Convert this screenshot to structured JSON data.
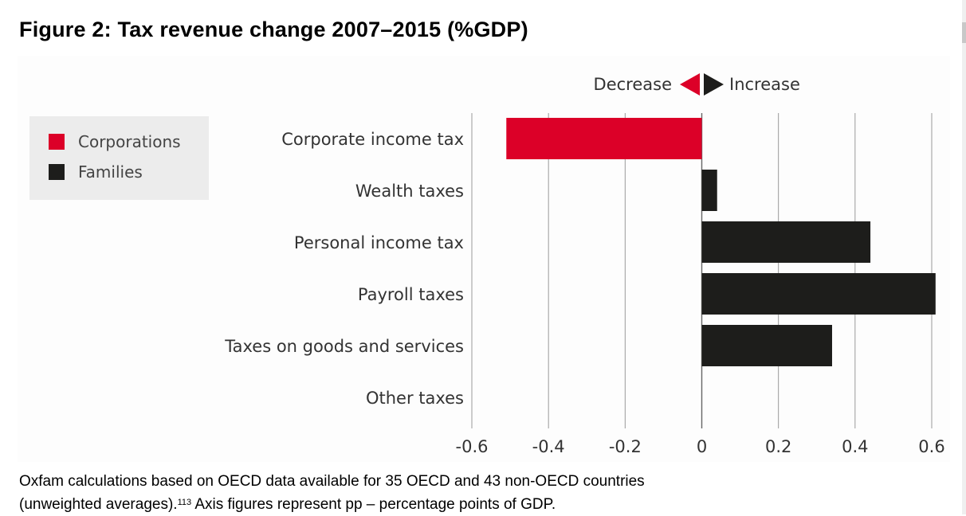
{
  "figure": {
    "title": "Figure 2: Tax revenue change 2007–2015 (%GDP)",
    "caption_line1": "Oxfam calculations based on OECD data available for 35 OECD and 43 non-OECD countries",
    "caption_line2_pre": "(unweighted averages).",
    "caption_footnote": "113",
    "caption_line2_post": " Axis figures represent pp – percentage points of GDP."
  },
  "chart_data": {
    "type": "bar",
    "orientation": "horizontal",
    "title": "Figure 2: Tax revenue change 2007–2015 (%GDP)",
    "xlabel": "",
    "ylabel": "",
    "xlim": [
      -0.6,
      0.6
    ],
    "xticks": [
      -0.6,
      -0.4,
      -0.2,
      0,
      0.2,
      0.4,
      0.6
    ],
    "xtick_labels": [
      "-0.6",
      "-0.4",
      "-0.2",
      "0",
      "0.2",
      "0.4",
      "0.6"
    ],
    "grid": true,
    "categories": [
      "Corporate income tax",
      "Wealth taxes",
      "Personal income tax",
      "Payroll taxes",
      "Taxes on goods and services",
      "Other taxes"
    ],
    "values": [
      -0.51,
      0.04,
      0.44,
      0.61,
      0.34,
      0.0
    ],
    "groups": [
      "Corporations",
      "Families",
      "Families",
      "Families",
      "Families",
      "Families"
    ],
    "legend": {
      "placement": "top-left",
      "entries": [
        {
          "name": "Corporations",
          "color": "#dc0028"
        },
        {
          "name": "Families",
          "color": "#1d1d1b"
        }
      ]
    },
    "direction_indicator": {
      "decrease_label": "Decrease",
      "increase_label": "Increase",
      "decrease_color": "#dc0028",
      "increase_color": "#1d1d1b"
    }
  }
}
